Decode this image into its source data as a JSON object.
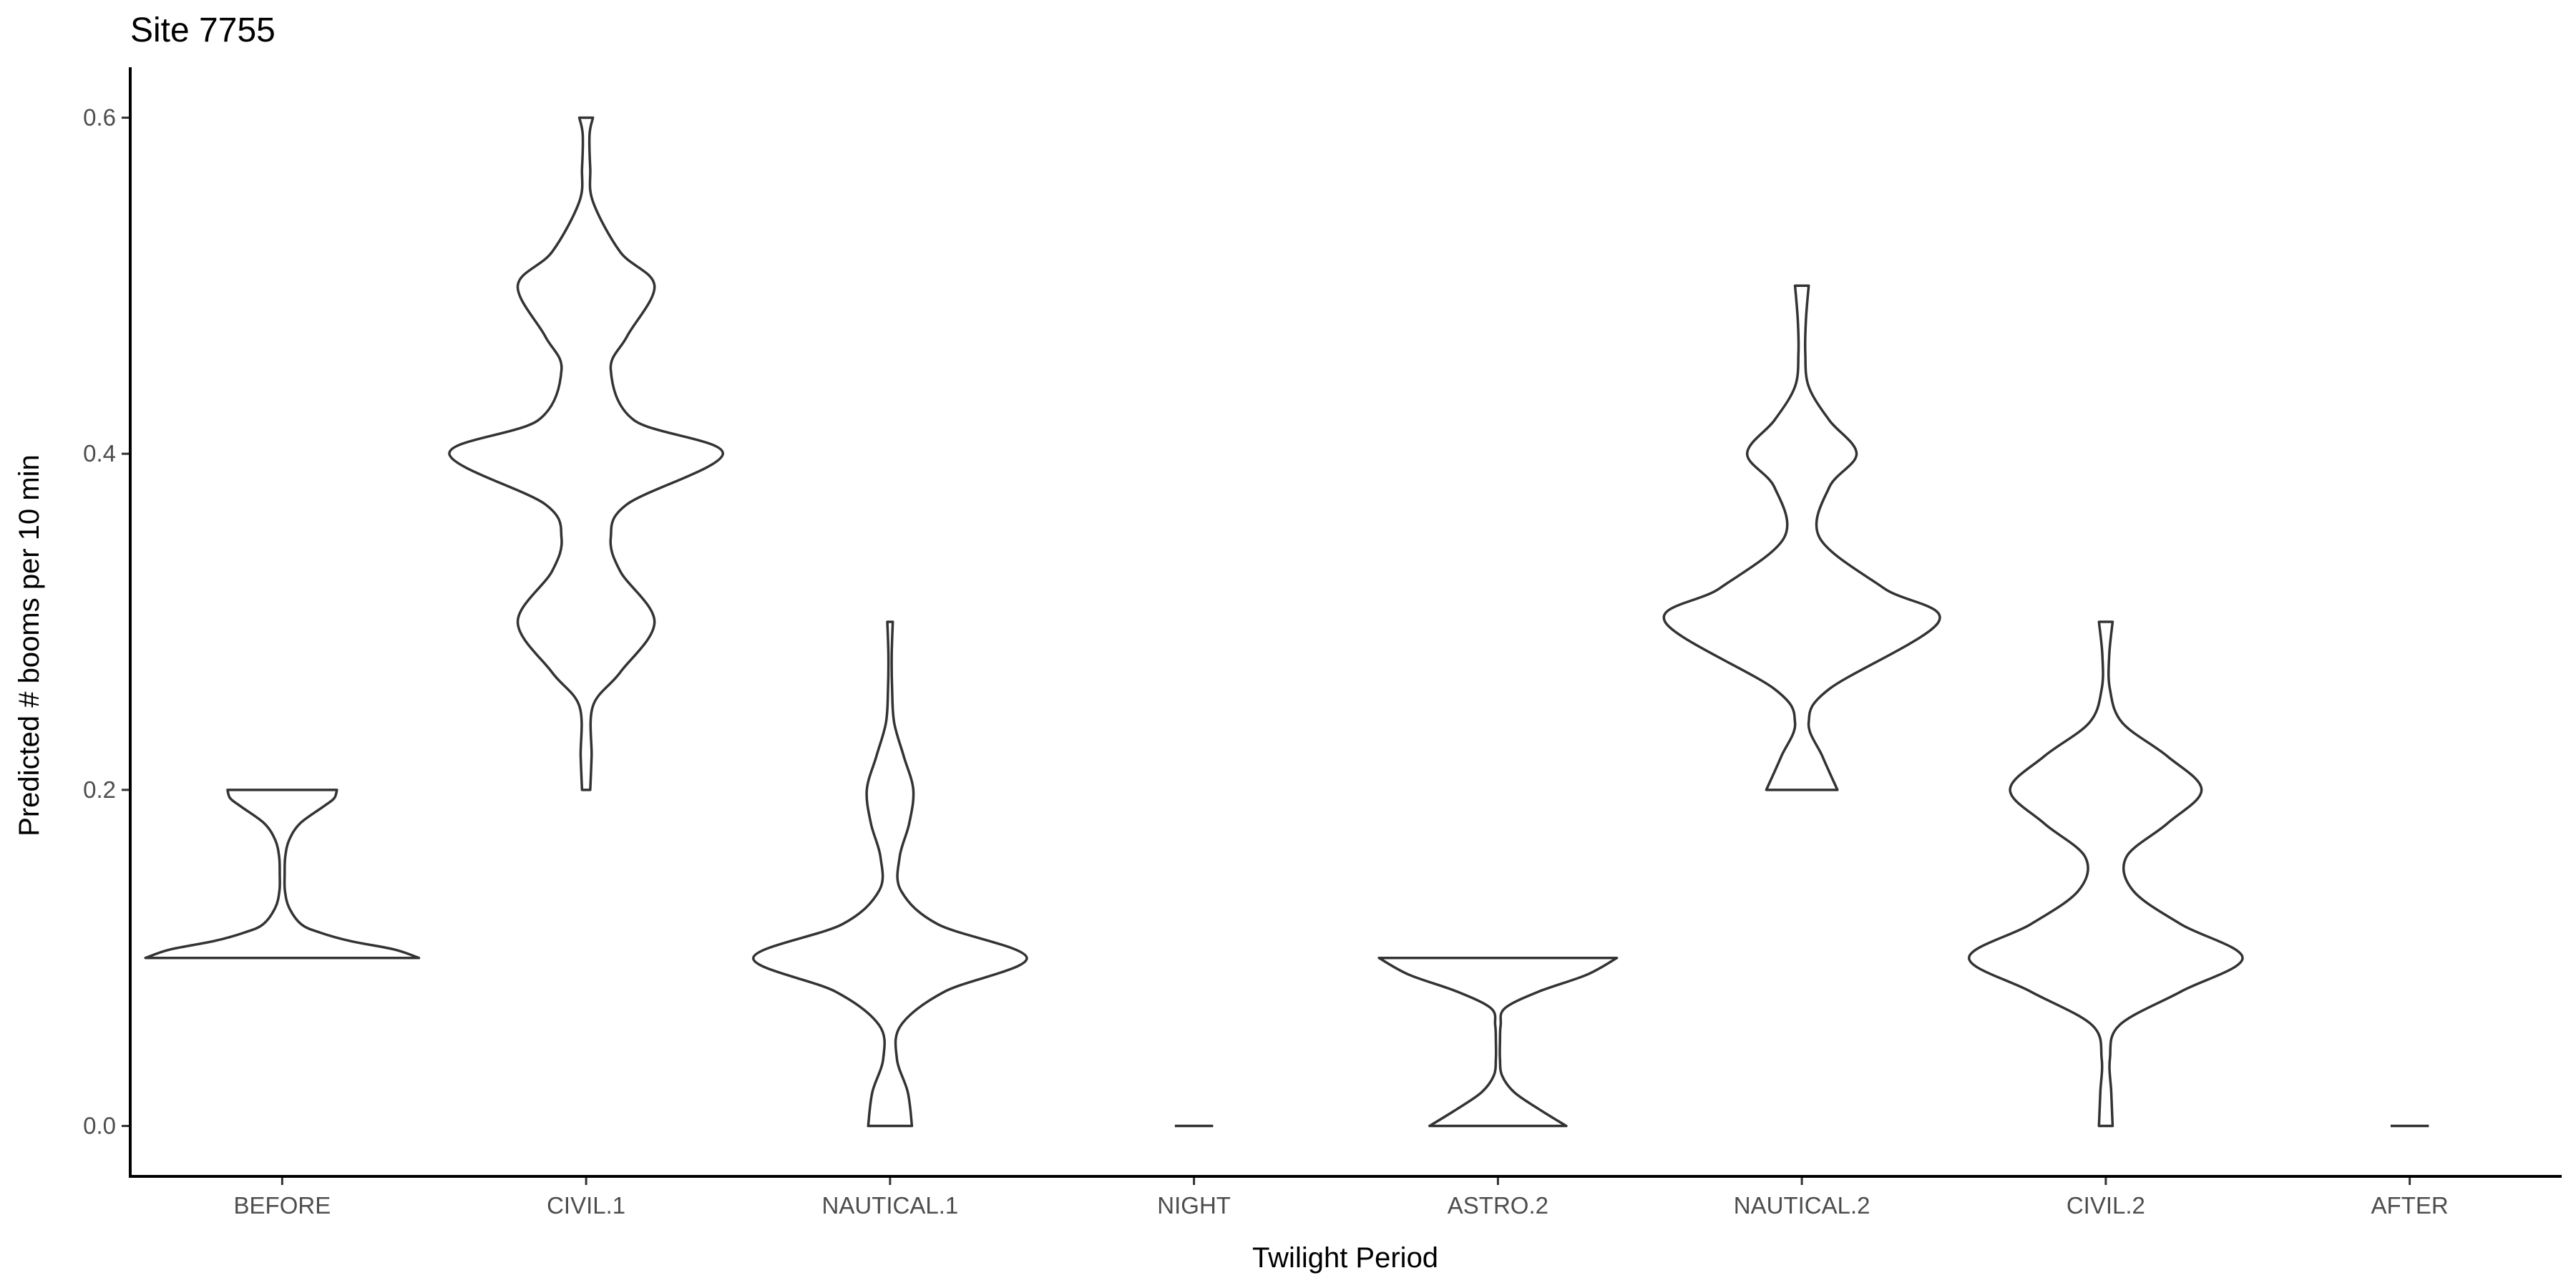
{
  "chart_data": {
    "type": "violin",
    "title": "Site 7755",
    "xlabel": "Twilight Period",
    "ylabel": "Predicted # booms per 10 min",
    "ylim": [
      -0.03,
      0.63
    ],
    "yticks": [
      0.0,
      0.2,
      0.4,
      0.6
    ],
    "ytick_labels": [
      "0.0",
      "0.2",
      "0.4",
      "0.6"
    ],
    "grid": false,
    "legend": "none",
    "categories": [
      "BEFORE",
      "CIVIL.1",
      "NAUTICAL.1",
      "NIGHT",
      "ASTRO.2",
      "NAUTICAL.2",
      "CIVIL.2",
      "AFTER"
    ],
    "violins": [
      {
        "category": "BEFORE",
        "ymin": 0.1,
        "ymax": 0.2,
        "profile": [
          [
            0.1,
            1.0
          ],
          [
            0.105,
            0.82
          ],
          [
            0.11,
            0.5
          ],
          [
            0.115,
            0.28
          ],
          [
            0.12,
            0.14
          ],
          [
            0.13,
            0.05
          ],
          [
            0.14,
            0.02
          ],
          [
            0.15,
            0.018
          ],
          [
            0.16,
            0.022
          ],
          [
            0.17,
            0.05
          ],
          [
            0.18,
            0.13
          ],
          [
            0.19,
            0.3
          ],
          [
            0.195,
            0.38
          ],
          [
            0.2,
            0.4
          ]
        ]
      },
      {
        "category": "CIVIL.1",
        "ymin": 0.2,
        "ymax": 0.6,
        "profile": [
          [
            0.2,
            0.03
          ],
          [
            0.22,
            0.04
          ],
          [
            0.25,
            0.05
          ],
          [
            0.27,
            0.25
          ],
          [
            0.3,
            0.5
          ],
          [
            0.33,
            0.25
          ],
          [
            0.35,
            0.18
          ],
          [
            0.37,
            0.3
          ],
          [
            0.4,
            1.0
          ],
          [
            0.42,
            0.35
          ],
          [
            0.45,
            0.18
          ],
          [
            0.47,
            0.3
          ],
          [
            0.5,
            0.5
          ],
          [
            0.52,
            0.25
          ],
          [
            0.55,
            0.05
          ],
          [
            0.57,
            0.03
          ],
          [
            0.59,
            0.025
          ],
          [
            0.6,
            0.05
          ]
        ]
      },
      {
        "category": "NAUTICAL.1",
        "ymin": 0.0,
        "ymax": 0.3,
        "profile": [
          [
            0.0,
            0.16
          ],
          [
            0.02,
            0.13
          ],
          [
            0.04,
            0.05
          ],
          [
            0.06,
            0.08
          ],
          [
            0.08,
            0.4
          ],
          [
            0.1,
            1.0
          ],
          [
            0.12,
            0.35
          ],
          [
            0.14,
            0.08
          ],
          [
            0.16,
            0.07
          ],
          [
            0.18,
            0.14
          ],
          [
            0.2,
            0.17
          ],
          [
            0.22,
            0.1
          ],
          [
            0.24,
            0.03
          ],
          [
            0.26,
            0.015
          ],
          [
            0.28,
            0.012
          ],
          [
            0.3,
            0.02
          ]
        ]
      },
      {
        "category": "NIGHT",
        "ymin": 0.0,
        "ymax": 0.0,
        "profile": [
          [
            0.0,
            0.14
          ]
        ]
      },
      {
        "category": "ASTRO.2",
        "ymin": 0.0,
        "ymax": 0.1,
        "profile": [
          [
            0.0,
            0.5
          ],
          [
            0.01,
            0.3
          ],
          [
            0.02,
            0.12
          ],
          [
            0.03,
            0.03
          ],
          [
            0.04,
            0.015
          ],
          [
            0.05,
            0.015
          ],
          [
            0.06,
            0.02
          ],
          [
            0.07,
            0.05
          ],
          [
            0.08,
            0.3
          ],
          [
            0.09,
            0.65
          ],
          [
            0.1,
            0.87
          ]
        ]
      },
      {
        "category": "NAUTICAL.2",
        "ymin": 0.2,
        "ymax": 0.5,
        "profile": [
          [
            0.2,
            0.26
          ],
          [
            0.22,
            0.15
          ],
          [
            0.24,
            0.05
          ],
          [
            0.26,
            0.2
          ],
          [
            0.3,
            1.0
          ],
          [
            0.32,
            0.6
          ],
          [
            0.35,
            0.13
          ],
          [
            0.38,
            0.2
          ],
          [
            0.4,
            0.4
          ],
          [
            0.42,
            0.2
          ],
          [
            0.44,
            0.05
          ],
          [
            0.46,
            0.025
          ],
          [
            0.48,
            0.03
          ],
          [
            0.5,
            0.05
          ]
        ]
      },
      {
        "category": "CIVIL.2",
        "ymin": 0.0,
        "ymax": 0.3,
        "profile": [
          [
            0.0,
            0.05
          ],
          [
            0.02,
            0.04
          ],
          [
            0.04,
            0.03
          ],
          [
            0.06,
            0.1
          ],
          [
            0.08,
            0.55
          ],
          [
            0.1,
            1.0
          ],
          [
            0.12,
            0.55
          ],
          [
            0.14,
            0.2
          ],
          [
            0.16,
            0.15
          ],
          [
            0.18,
            0.45
          ],
          [
            0.2,
            0.7
          ],
          [
            0.22,
            0.45
          ],
          [
            0.24,
            0.12
          ],
          [
            0.26,
            0.03
          ],
          [
            0.28,
            0.025
          ],
          [
            0.3,
            0.05
          ]
        ]
      },
      {
        "category": "AFTER",
        "ymin": 0.0,
        "ymax": 0.0,
        "profile": [
          [
            0.0,
            0.14
          ]
        ]
      }
    ]
  }
}
